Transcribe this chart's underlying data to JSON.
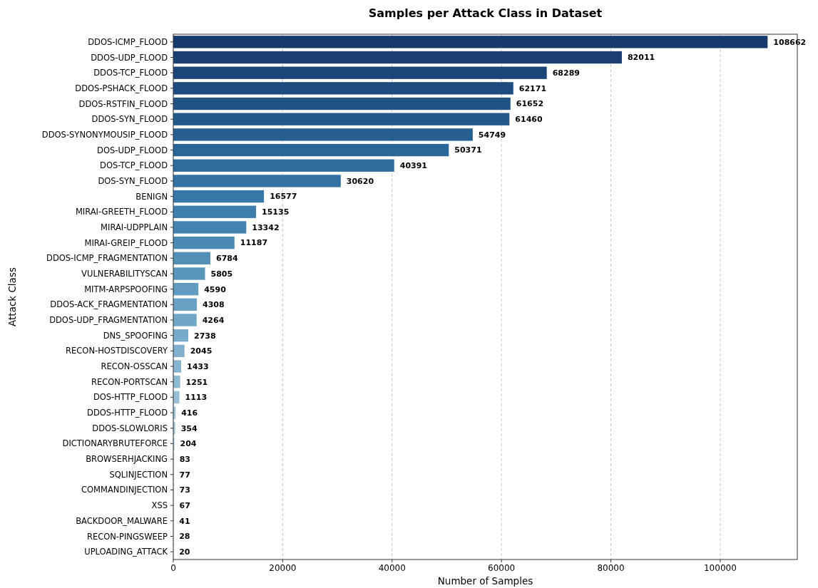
{
  "chart_data": {
    "type": "bar",
    "orientation": "horizontal",
    "title": "Samples per Attack Class in Dataset",
    "xlabel": "Number of Samples",
    "ylabel": "Attack Class",
    "categories": [
      "DDOS-ICMP_FLOOD",
      "DDOS-UDP_FLOOD",
      "DDOS-TCP_FLOOD",
      "DDOS-PSHACK_FLOOD",
      "DDOS-RSTFIN_FLOOD",
      "DDOS-SYN_FLOOD",
      "DDOS-SYNONYMOUSIP_FLOOD",
      "DOS-UDP_FLOOD",
      "DOS-TCP_FLOOD",
      "DOS-SYN_FLOOD",
      "BENIGN",
      "MIRAI-GREETH_FLOOD",
      "MIRAI-UDPPLAIN",
      "MIRAI-GREIP_FLOOD",
      "DDOS-ICMP_FRAGMENTATION",
      "VULNERABILITYSCAN",
      "MITM-ARPSPOOFING",
      "DDOS-ACK_FRAGMENTATION",
      "DDOS-UDP_FRAGMENTATION",
      "DNS_SPOOFING",
      "RECON-HOSTDISCOVERY",
      "RECON-OSSCAN",
      "RECON-PORTSCAN",
      "DOS-HTTP_FLOOD",
      "DDOS-HTTP_FLOOD",
      "DDOS-SLOWLORIS",
      "DICTIONARYBRUTEFORCE",
      "BROWSERHJACKING",
      "SQLINJECTION",
      "COMMANDINJECTION",
      "XSS",
      "BACKDOOR_MALWARE",
      "RECON-PINGSWEEP",
      "UPLOADING_ATTACK"
    ],
    "values": [
      108662,
      82011,
      68289,
      62171,
      61652,
      61460,
      54749,
      50371,
      40391,
      30620,
      16577,
      15135,
      13342,
      11187,
      6784,
      5805,
      4590,
      4308,
      4264,
      2738,
      2045,
      1433,
      1251,
      1113,
      416,
      354,
      204,
      83,
      77,
      73,
      67,
      41,
      28,
      20
    ],
    "colors": [
      "#163a6c",
      "#1b3f70",
      "#1c4677",
      "#1f4c80",
      "#215384",
      "#235a8a",
      "#265f90",
      "#2a6697",
      "#2e6c9c",
      "#3372a2",
      "#3878a8",
      "#3e7eac",
      "#4584b0",
      "#4b8ab4",
      "#5290b8",
      "#5a96bc",
      "#619bbf",
      "#68a1c3",
      "#70a6c6",
      "#78abc9",
      "#80b0cc",
      "#88b5cf",
      "#90bad2",
      "#98bfd5",
      "#9fc3d8",
      "#a6c7db",
      "#adcbde",
      "#b3cfe1",
      "#b9d3e3",
      "#bed6e5",
      "#c3d9e8",
      "#c7dcea",
      "#cbdeec",
      "#cfe1ee"
    ],
    "xlim": [
      0,
      114095
    ],
    "xticks": [
      0,
      20000,
      40000,
      60000,
      80000,
      100000
    ],
    "grid": "x",
    "data_labels": true
  }
}
